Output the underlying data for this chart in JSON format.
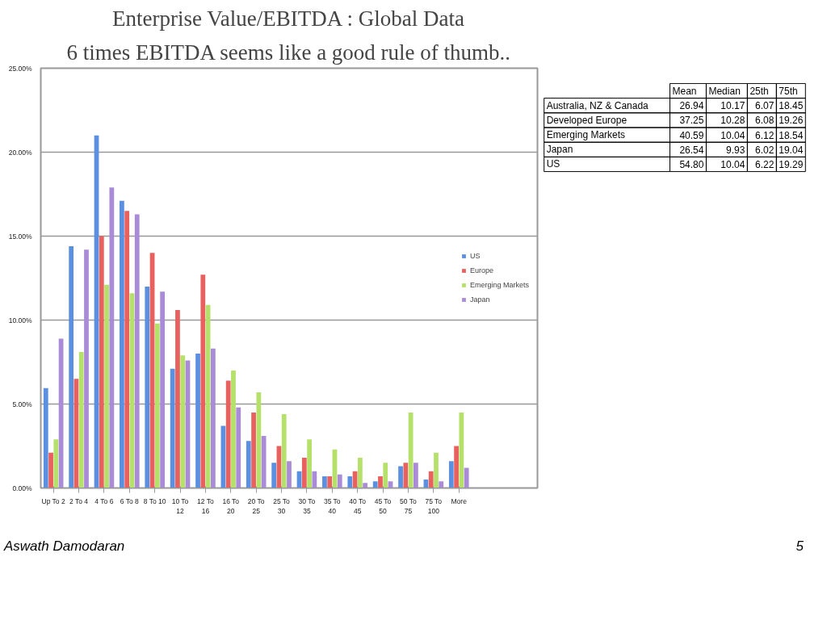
{
  "chart_data": [
    {
      "type": "bar",
      "title": "Enterprise Value/EBITDA : Global Data",
      "subtitle": "6 times EBITDA seems like a good rule of thumb..",
      "categories": [
        "Up To 2",
        "2 To 4",
        "4 To 6",
        "6 To 8",
        "8 To 10",
        "10 To 12",
        "12 To 16",
        "16 To 20",
        "20 To 25",
        "25 To 30",
        "30 To 35",
        "35 To 40",
        "40 To 45",
        "45 To 50",
        "50 To 75",
        "75 To 100",
        "More"
      ],
      "series": [
        {
          "name": "US",
          "color": "#5b8fe0",
          "values": [
            5.95,
            14.4,
            21.0,
            17.1,
            12.0,
            7.1,
            8.0,
            3.7,
            2.8,
            1.5,
            1.0,
            0.7,
            0.7,
            0.4,
            1.3,
            0.5,
            1.6
          ]
        },
        {
          "name": "Europe",
          "color": "#e8615e",
          "values": [
            2.1,
            6.5,
            15.0,
            16.5,
            14.0,
            10.6,
            12.7,
            6.4,
            4.5,
            2.5,
            1.8,
            0.7,
            1.0,
            0.7,
            1.5,
            1.0,
            2.5
          ]
        },
        {
          "name": "Emerging Markets",
          "color": "#b5e06a",
          "values": [
            2.9,
            8.1,
            12.1,
            11.6,
            9.8,
            7.9,
            10.9,
            7.0,
            5.7,
            4.4,
            2.9,
            2.3,
            1.8,
            1.5,
            4.5,
            2.1,
            4.5
          ]
        },
        {
          "name": "Japan",
          "color": "#a98bd8",
          "values": [
            8.9,
            14.2,
            17.9,
            16.3,
            11.7,
            7.6,
            8.3,
            4.8,
            3.1,
            1.6,
            1.0,
            0.8,
            0.3,
            0.4,
            1.5,
            0.4,
            1.2
          ]
        }
      ],
      "ylim": [
        0,
        25
      ],
      "yticks": [
        {
          "value": 0,
          "label": "0.00%"
        },
        {
          "value": 5,
          "label": "5.00%"
        },
        {
          "value": 10,
          "label": "10.00%"
        },
        {
          "value": 15,
          "label": "15.00%"
        },
        {
          "value": 20,
          "label": "20.00%"
        },
        {
          "value": 25,
          "label": "25.00%"
        }
      ],
      "grid": "y",
      "legend": "right",
      "annotations": [
        "Aswath Damodaran",
        "5"
      ]
    },
    {
      "type": "other",
      "categories": [
        "Mean",
        "Median",
        "25th",
        "75th"
      ],
      "y_categories": [
        "Australia, NZ & Canada",
        "Developed Europe",
        "Emerging Markets",
        "Japan",
        "US"
      ],
      "cell_labels": [
        [
          "26.94",
          "10.17",
          "6.07",
          "18.45"
        ],
        [
          "37.25",
          "10.28",
          "6.08",
          "19.26"
        ],
        [
          "40.59",
          "10.04",
          "6.12",
          "18.54"
        ],
        [
          "26.54",
          "9.93",
          "6.02",
          "19.04"
        ],
        [
          "54.80",
          "10.04",
          "6.22",
          "19.29"
        ]
      ]
    }
  ]
}
